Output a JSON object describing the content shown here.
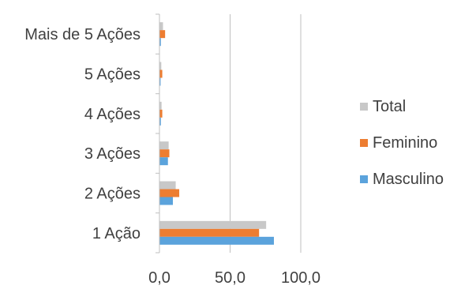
{
  "chart_data": {
    "type": "bar",
    "orientation": "horizontal",
    "categories": [
      "1 Ação",
      "2 Ações",
      "3 Ações",
      "4 Ações",
      "5 Ações",
      "Mais de 5 Ações"
    ],
    "series": [
      {
        "name": "Total",
        "color": "#C8C8C8",
        "values": [
          75.5,
          11.5,
          6.5,
          1.5,
          1.3,
          2.5
        ]
      },
      {
        "name": "Feminino",
        "color": "#ED7D31",
        "values": [
          70.5,
          14.0,
          7.0,
          2.0,
          2.0,
          4.0
        ]
      },
      {
        "name": "Masculino",
        "color": "#5BA3DC",
        "values": [
          81.0,
          9.5,
          6.0,
          1.0,
          0.8,
          1.0
        ]
      }
    ],
    "xlim": [
      0,
      100
    ],
    "xticks": [
      "0,0",
      "50,0",
      "100,0"
    ],
    "xtick_values": [
      0,
      50,
      100
    ],
    "grid": "vertical",
    "legend_position": "right",
    "title": "",
    "xlabel": "",
    "ylabel": ""
  }
}
